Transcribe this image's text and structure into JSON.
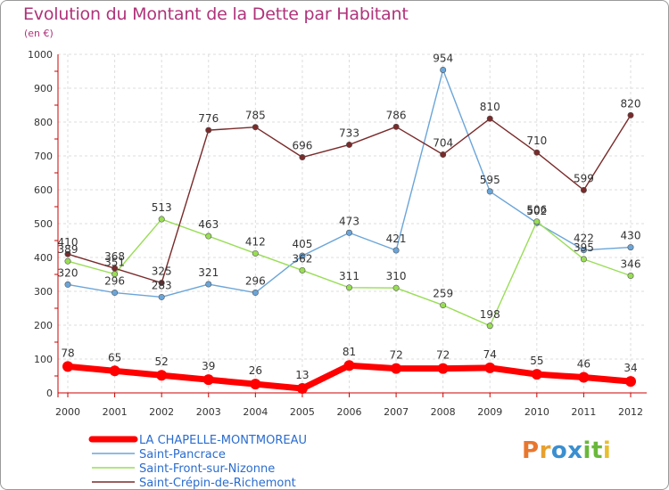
{
  "chart_data": {
    "type": "line",
    "title": "Evolution du Montant de la Dette par Habitant",
    "subtitle": "(en €)",
    "x": [
      "2000",
      "2001",
      "2002",
      "2003",
      "2004",
      "2005",
      "2006",
      "2007",
      "2008",
      "2009",
      "2010",
      "2011",
      "2012"
    ],
    "ylim": [
      0,
      1000
    ],
    "yticks": [
      0,
      100,
      200,
      300,
      400,
      500,
      600,
      700,
      800,
      900,
      1000
    ],
    "grid": true,
    "legend_position": "bottom-left",
    "series": [
      {
        "name": "LA CHAPELLE-MONTMOREAU",
        "color": "#ff0000",
        "values": [
          78,
          65,
          52,
          39,
          26,
          13,
          81,
          72,
          72,
          74,
          55,
          46,
          34
        ],
        "labels": [
          "78",
          "65",
          "52",
          "39",
          "26",
          "13",
          "81",
          "72",
          "72",
          "74",
          "55",
          "46",
          "34"
        ]
      },
      {
        "name": "Saint-Pancrace",
        "color": "#6aa5d9",
        "values": [
          320,
          296,
          283,
          321,
          296,
          405,
          473,
          421,
          954,
          595,
          502,
          422,
          430
        ],
        "labels": [
          "320",
          "296",
          "283",
          "321",
          "296",
          "405",
          "473",
          "421",
          "954",
          "595",
          "502",
          "422",
          "430"
        ]
      },
      {
        "name": "Saint-Front-sur-Nizonne",
        "color": "#99dd55",
        "values": [
          389,
          351,
          513,
          463,
          412,
          362,
          311,
          310,
          259,
          198,
          506,
          395,
          346
        ],
        "labels": [
          "389",
          "351",
          "513",
          "463",
          "412",
          "362",
          "311",
          "310",
          "259",
          "198",
          "506",
          "395",
          "346"
        ]
      },
      {
        "name": "Saint-Crépin-de-Richemont",
        "color": "#7a2a2a",
        "values": [
          410,
          368,
          325,
          776,
          785,
          696,
          733,
          786,
          704,
          810,
          710,
          599,
          820
        ],
        "labels": [
          "410",
          "368",
          "325",
          "776",
          "785",
          "696",
          "733",
          "786",
          "704",
          "810",
          "710",
          "599",
          "820"
        ]
      }
    ]
  },
  "logo": {
    "text": "Proxiti"
  }
}
